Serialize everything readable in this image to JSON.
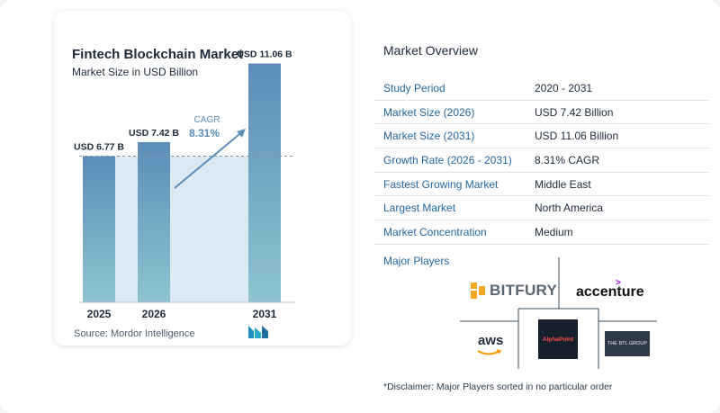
{
  "chart_data": {
    "type": "bar",
    "title": "Fintech Blockchain Market",
    "subtitle": "Market Size in USD Billion",
    "categories": [
      "2025",
      "2026",
      "2031"
    ],
    "values": [
      6.77,
      7.42,
      11.06
    ],
    "value_labels": [
      "USD 6.77 B",
      "USD 7.42 B",
      "USD 11.06 B"
    ],
    "cagr_label": "CAGR",
    "cagr_value": "8.31%",
    "ylim": [
      0,
      12
    ],
    "grid": false,
    "bar_color": "#5b8db8",
    "reference_line": 6.77
  },
  "source": "Source:  Mordor Intelligence",
  "overview": {
    "title": "Market Overview",
    "rows": [
      {
        "label": "Study Period",
        "value": "2020 - 2031"
      },
      {
        "label": "Market Size (2026)",
        "value": "USD 7.42 Billion"
      },
      {
        "label": "Market Size (2031)",
        "value": "USD 11.06 Billion"
      },
      {
        "label": "Growth Rate (2026 - 2031)",
        "value": "8.31% CAGR"
      },
      {
        "label": "Fastest Growing Market",
        "value": "Middle East"
      },
      {
        "label": "Largest Market",
        "value": "North America"
      },
      {
        "label": "Market Concentration",
        "value": "Medium"
      }
    ]
  },
  "players": {
    "title": "Major Players",
    "logos": {
      "bitfury": "BITFURY",
      "accenture": "accenture",
      "aws": "aws",
      "alphapoint": "AlphaPoint",
      "btl": "THE BTL GROUP"
    }
  },
  "disclaimer": "*Disclaimer: Major Players sorted in no particular order"
}
